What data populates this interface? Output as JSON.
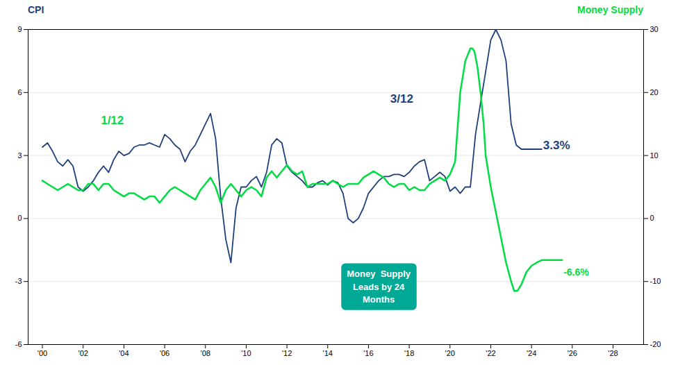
{
  "chart_data": {
    "type": "line",
    "ylabel": "CPI",
    "y2label": "Money Supply",
    "xlim": [
      1999.3,
      2029.5
    ],
    "xticks": [
      {
        "value": 2000,
        "label": "'00"
      },
      {
        "value": 2002,
        "label": "'02"
      },
      {
        "value": 2004,
        "label": "'04"
      },
      {
        "value": 2006,
        "label": "'06"
      },
      {
        "value": 2008,
        "label": "'08"
      },
      {
        "value": 2010,
        "label": "'10"
      },
      {
        "value": 2012,
        "label": "'12"
      },
      {
        "value": 2014,
        "label": "'14"
      },
      {
        "value": 2016,
        "label": "'16"
      },
      {
        "value": 2018,
        "label": "'18"
      },
      {
        "value": 2020,
        "label": "'20"
      },
      {
        "value": 2022,
        "label": "'22"
      },
      {
        "value": 2024,
        "label": "'24"
      },
      {
        "value": 2026,
        "label": "'26"
      },
      {
        "value": 2028,
        "label": "'28"
      }
    ],
    "ylim": [
      -6,
      9
    ],
    "yticks": [
      -6,
      -3,
      0,
      3,
      6,
      9
    ],
    "y2lim": [
      -20,
      30
    ],
    "y2ticks": [
      -20,
      -10,
      0,
      10,
      20,
      30
    ],
    "grid": true,
    "series": [
      {
        "name": "CPI",
        "color": "#1e3f7a",
        "x": [
          2000.0,
          2000.25,
          2000.5,
          2000.75,
          2001.0,
          2001.25,
          2001.5,
          2001.75,
          2002.0,
          2002.25,
          2002.5,
          2002.75,
          2003.0,
          2003.25,
          2003.5,
          2003.75,
          2004.0,
          2004.25,
          2004.5,
          2004.75,
          2005.0,
          2005.25,
          2005.5,
          2005.75,
          2006.0,
          2006.25,
          2006.5,
          2006.75,
          2007.0,
          2007.25,
          2007.5,
          2007.75,
          2008.0,
          2008.25,
          2008.5,
          2008.75,
          2009.0,
          2009.25,
          2009.5,
          2009.75,
          2010.0,
          2010.25,
          2010.5,
          2010.75,
          2011.0,
          2011.25,
          2011.5,
          2011.75,
          2012.0,
          2012.25,
          2012.5,
          2012.75,
          2013.0,
          2013.25,
          2013.5,
          2013.75,
          2014.0,
          2014.25,
          2014.5,
          2014.75,
          2015.0,
          2015.25,
          2015.5,
          2015.75,
          2016.0,
          2016.25,
          2016.5,
          2016.75,
          2017.0,
          2017.25,
          2017.5,
          2017.75,
          2018.0,
          2018.25,
          2018.5,
          2018.75,
          2019.0,
          2019.25,
          2019.5,
          2019.75,
          2020.0,
          2020.25,
          2020.5,
          2020.75,
          2021.0,
          2021.25,
          2021.5,
          2021.75,
          2022.0,
          2022.25,
          2022.5,
          2022.75,
          2023.0,
          2023.25,
          2023.5,
          2023.75,
          2024.0,
          2024.25,
          2024.5
        ],
        "values": [
          3.4,
          3.6,
          3.2,
          2.7,
          2.5,
          2.8,
          2.5,
          1.5,
          1.3,
          1.5,
          1.8,
          2.2,
          2.5,
          2.2,
          2.8,
          3.2,
          3.0,
          3.1,
          3.4,
          3.5,
          3.5,
          3.6,
          3.5,
          3.4,
          4.0,
          3.8,
          3.5,
          3.3,
          2.7,
          3.2,
          3.5,
          4.0,
          4.5,
          5.0,
          3.8,
          1.0,
          -1.0,
          -2.1,
          0.5,
          1.5,
          1.5,
          1.8,
          2.0,
          1.5,
          2.2,
          3.5,
          3.8,
          3.6,
          2.5,
          2.2,
          2.0,
          1.8,
          1.5,
          1.5,
          1.7,
          1.8,
          1.6,
          1.8,
          1.7,
          1.2,
          0.0,
          -0.2,
          0.0,
          0.5,
          1.2,
          1.5,
          1.8,
          2.0,
          2.0,
          2.1,
          2.1,
          2.0,
          2.2,
          2.5,
          2.7,
          2.8,
          1.8,
          2.0,
          2.2,
          2.0,
          1.3,
          1.5,
          1.2,
          1.5,
          1.5,
          4.0,
          5.5,
          7.0,
          8.5,
          9.0,
          8.5,
          7.5,
          4.5,
          3.5,
          3.3,
          3.3,
          3.3,
          3.3,
          3.3
        ]
      },
      {
        "name": "Money Supply",
        "color": "#00dd44",
        "axis": "y2",
        "x": [
          2000.0,
          2000.25,
          2000.5,
          2000.75,
          2001.0,
          2001.25,
          2001.5,
          2001.75,
          2002.0,
          2002.25,
          2002.5,
          2002.75,
          2003.0,
          2003.25,
          2003.5,
          2003.75,
          2004.0,
          2004.25,
          2004.5,
          2004.75,
          2005.0,
          2005.25,
          2005.5,
          2005.75,
          2006.0,
          2006.25,
          2006.5,
          2006.75,
          2007.0,
          2007.25,
          2007.5,
          2007.75,
          2008.0,
          2008.25,
          2008.5,
          2008.75,
          2009.0,
          2009.25,
          2009.5,
          2009.75,
          2010.0,
          2010.25,
          2010.5,
          2010.75,
          2011.0,
          2011.25,
          2011.5,
          2011.75,
          2012.0,
          2012.25,
          2012.5,
          2012.75,
          2013.0,
          2013.25,
          2013.5,
          2013.75,
          2014.0,
          2014.25,
          2014.5,
          2014.75,
          2015.0,
          2015.25,
          2015.5,
          2015.75,
          2016.0,
          2016.25,
          2016.5,
          2016.75,
          2017.0,
          2017.25,
          2017.5,
          2017.75,
          2018.0,
          2018.25,
          2018.5,
          2018.75,
          2019.0,
          2019.25,
          2019.5,
          2019.75,
          2020.0,
          2020.25,
          2020.5,
          2020.75,
          2021.0,
          2021.1,
          2021.2,
          2021.35,
          2021.5,
          2021.65,
          2021.75,
          2022.0,
          2022.25,
          2022.5,
          2022.75,
          2023.0,
          2023.15,
          2023.3,
          2023.5,
          2023.75,
          2024.0,
          2024.25,
          2024.5,
          2024.75,
          2025.0,
          2025.25,
          2025.5
        ],
        "values": [
          6.0,
          5.5,
          5.0,
          4.5,
          5.0,
          5.5,
          5.0,
          4.5,
          4.5,
          5.5,
          5.5,
          4.5,
          5.5,
          5.5,
          4.5,
          4.0,
          3.5,
          4.0,
          4.0,
          3.5,
          3.0,
          3.5,
          3.5,
          2.5,
          3.5,
          4.5,
          5.0,
          4.5,
          4.0,
          3.5,
          3.0,
          4.5,
          5.5,
          6.5,
          5.0,
          2.5,
          4.5,
          5.5,
          4.5,
          3.5,
          4.5,
          5.0,
          4.5,
          3.5,
          6.5,
          7.5,
          6.5,
          7.5,
          8.5,
          7.5,
          7.0,
          7.5,
          5.0,
          5.5,
          5.5,
          5.5,
          5.5,
          6.0,
          5.5,
          5.0,
          5.5,
          5.5,
          5.5,
          6.5,
          7.0,
          7.5,
          7.0,
          6.5,
          5.5,
          5.0,
          5.5,
          5.5,
          4.5,
          5.0,
          4.5,
          4.5,
          5.5,
          6.0,
          6.5,
          6.0,
          7.0,
          9.0,
          20.0,
          25.0,
          27.0,
          27.0,
          26.5,
          24.0,
          20.0,
          15.0,
          10.0,
          5.0,
          1.0,
          -3.0,
          -7.0,
          -10.0,
          -11.5,
          -11.5,
          -10.5,
          -8.5,
          -7.5,
          -7.0,
          -6.6,
          -6.6,
          -6.6,
          -6.6,
          -6.6
        ]
      }
    ],
    "annotations": [
      {
        "text": "1/12",
        "x": 2002.8,
        "y": 4.5,
        "color": "#00dd44"
      },
      {
        "text": "3/12",
        "x": 2017.0,
        "y": 5.5,
        "color": "#1e3f7a"
      },
      {
        "text": "3.3%",
        "x": 2024.5,
        "y": 3.3,
        "color": "#1e3f7a"
      },
      {
        "text": "-6.6%",
        "x": 2025.5,
        "y": -9.0,
        "color": "#00dd44",
        "axis": "y2"
      }
    ],
    "box": {
      "text": "Money  Supply\nLeads by 24\nMonths",
      "x": 2016.5,
      "y": -3.2,
      "color": "#00a896"
    }
  }
}
